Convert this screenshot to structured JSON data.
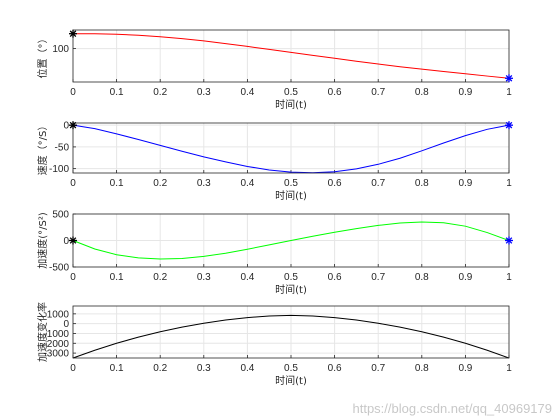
{
  "chart_data": [
    {
      "type": "line",
      "ylabel": "位置（°）",
      "xlabel": "时间(t)",
      "xlim": [
        0,
        1
      ],
      "ylim": [
        55,
        125
      ],
      "x_ticks": [
        "0",
        "0.1",
        "0.2",
        "0.3",
        "0.4",
        "0.5",
        "0.6",
        "0.7",
        "0.8",
        "0.9",
        "1"
      ],
      "y_ticks": [
        {
          "v": 100,
          "label": "100"
        }
      ],
      "grid": true,
      "color": "#ff0000",
      "x": [
        0,
        0.05,
        0.1,
        0.15,
        0.2,
        0.25,
        0.3,
        0.35,
        0.4,
        0.45,
        0.5,
        0.55,
        0.6,
        0.65,
        0.7,
        0.75,
        0.8,
        0.85,
        0.9,
        0.95,
        1.0
      ],
      "y": [
        120,
        119.9,
        119.3,
        118.0,
        116.0,
        113.4,
        110.3,
        106.7,
        102.9,
        98.9,
        94.9,
        90.9,
        86.9,
        83.0,
        79.2,
        75.6,
        72.3,
        69.1,
        66.1,
        63.0,
        60
      ],
      "markers": [
        {
          "x": 0,
          "y": 120,
          "symbol": "*",
          "color": "#000000"
        },
        {
          "x": 1,
          "y": 60,
          "symbol": "*",
          "color": "#0000ff"
        }
      ]
    },
    {
      "type": "line",
      "ylabel": "速度（°/S）",
      "xlabel": "时间(t)",
      "xlim": [
        0,
        1
      ],
      "ylim": [
        -110,
        5
      ],
      "x_ticks": [
        "0",
        "0.1",
        "0.2",
        "0.3",
        "0.4",
        "0.5",
        "0.6",
        "0.7",
        "0.8",
        "0.9",
        "1"
      ],
      "y_ticks": [
        {
          "v": 0,
          "label": "0"
        },
        {
          "v": -50,
          "label": "-50"
        },
        {
          "v": -100,
          "label": "-100"
        }
      ],
      "grid": true,
      "color": "#0000ff",
      "x": [
        0,
        0.05,
        0.1,
        0.15,
        0.2,
        0.25,
        0.3,
        0.35,
        0.4,
        0.45,
        0.5,
        0.55,
        0.6,
        0.65,
        0.7,
        0.75,
        0.8,
        0.85,
        0.9,
        0.95,
        1.0
      ],
      "y": [
        0,
        -8.0,
        -20.0,
        -33.0,
        -46.5,
        -60.0,
        -73.0,
        -84.5,
        -95.0,
        -103.0,
        -108.0,
        -109.5,
        -107.0,
        -100.5,
        -90.0,
        -76.0,
        -59.0,
        -41.0,
        -24.0,
        -9.5,
        0
      ],
      "markers": [
        {
          "x": 0,
          "y": 0,
          "symbol": "*",
          "color": "#000000"
        },
        {
          "x": 1,
          "y": 0,
          "symbol": "*",
          "color": "#0000ff"
        }
      ]
    },
    {
      "type": "line",
      "ylabel": "加速度(°/S²)",
      "xlabel": "时间(t)",
      "xlim": [
        0,
        1
      ],
      "ylim": [
        -500,
        500
      ],
      "x_ticks": [
        "0",
        "0.1",
        "0.2",
        "0.3",
        "0.4",
        "0.5",
        "0.6",
        "0.7",
        "0.8",
        "0.9",
        "1"
      ],
      "y_ticks": [
        {
          "v": 500,
          "label": "500"
        },
        {
          "v": 0,
          "label": "0"
        },
        {
          "v": -500,
          "label": "-500"
        }
      ],
      "grid": true,
      "color": "#00ff00",
      "x": [
        0,
        0.05,
        0.1,
        0.15,
        0.2,
        0.25,
        0.3,
        0.35,
        0.4,
        0.45,
        0.5,
        0.55,
        0.6,
        0.65,
        0.7,
        0.75,
        0.8,
        0.85,
        0.9,
        0.95,
        1.0
      ],
      "y": [
        0,
        -160,
        -268,
        -328,
        -350,
        -340,
        -300,
        -240,
        -165,
        -82,
        0,
        80,
        155,
        225,
        285,
        330,
        350,
        335,
        270,
        150,
        0
      ],
      "markers": [
        {
          "x": 0,
          "y": 0,
          "symbol": "*",
          "color": "#000000"
        },
        {
          "x": 1,
          "y": 0,
          "symbol": "*",
          "color": "#0000ff"
        }
      ]
    },
    {
      "type": "line",
      "ylabel": "加速度变化率",
      "xlabel": "时间(t)",
      "xlim": [
        0,
        1
      ],
      "ylim": [
        -3500,
        1800
      ],
      "x_ticks": [
        "0",
        "0.1",
        "0.2",
        "0.3",
        "0.4",
        "0.5",
        "0.6",
        "0.7",
        "0.8",
        "0.9",
        "1"
      ],
      "y_ticks": [
        {
          "v": 1000,
          "label": "1000"
        },
        {
          "v": 0,
          "label": "0"
        },
        {
          "v": -1000,
          "label": "-1000"
        },
        {
          "v": -2000,
          "label": "-2000"
        },
        {
          "v": -3000,
          "label": "-3000"
        }
      ],
      "grid": true,
      "color": "#000000",
      "x": [
        0,
        0.05,
        0.1,
        0.15,
        0.2,
        0.25,
        0.3,
        0.35,
        0.4,
        0.45,
        0.5,
        0.55,
        0.6,
        0.65,
        0.7,
        0.75,
        0.8,
        0.85,
        0.9,
        0.95,
        1.0
      ],
      "y": [
        -3500,
        -2710,
        -2000,
        -1370,
        -820,
        -350,
        40,
        370,
        620,
        780,
        840,
        780,
        620,
        370,
        40,
        -350,
        -820,
        -1370,
        -2000,
        -2710,
        -3500
      ],
      "markers": []
    }
  ],
  "watermark": "https://blog.csdn.net/qq_40969179"
}
